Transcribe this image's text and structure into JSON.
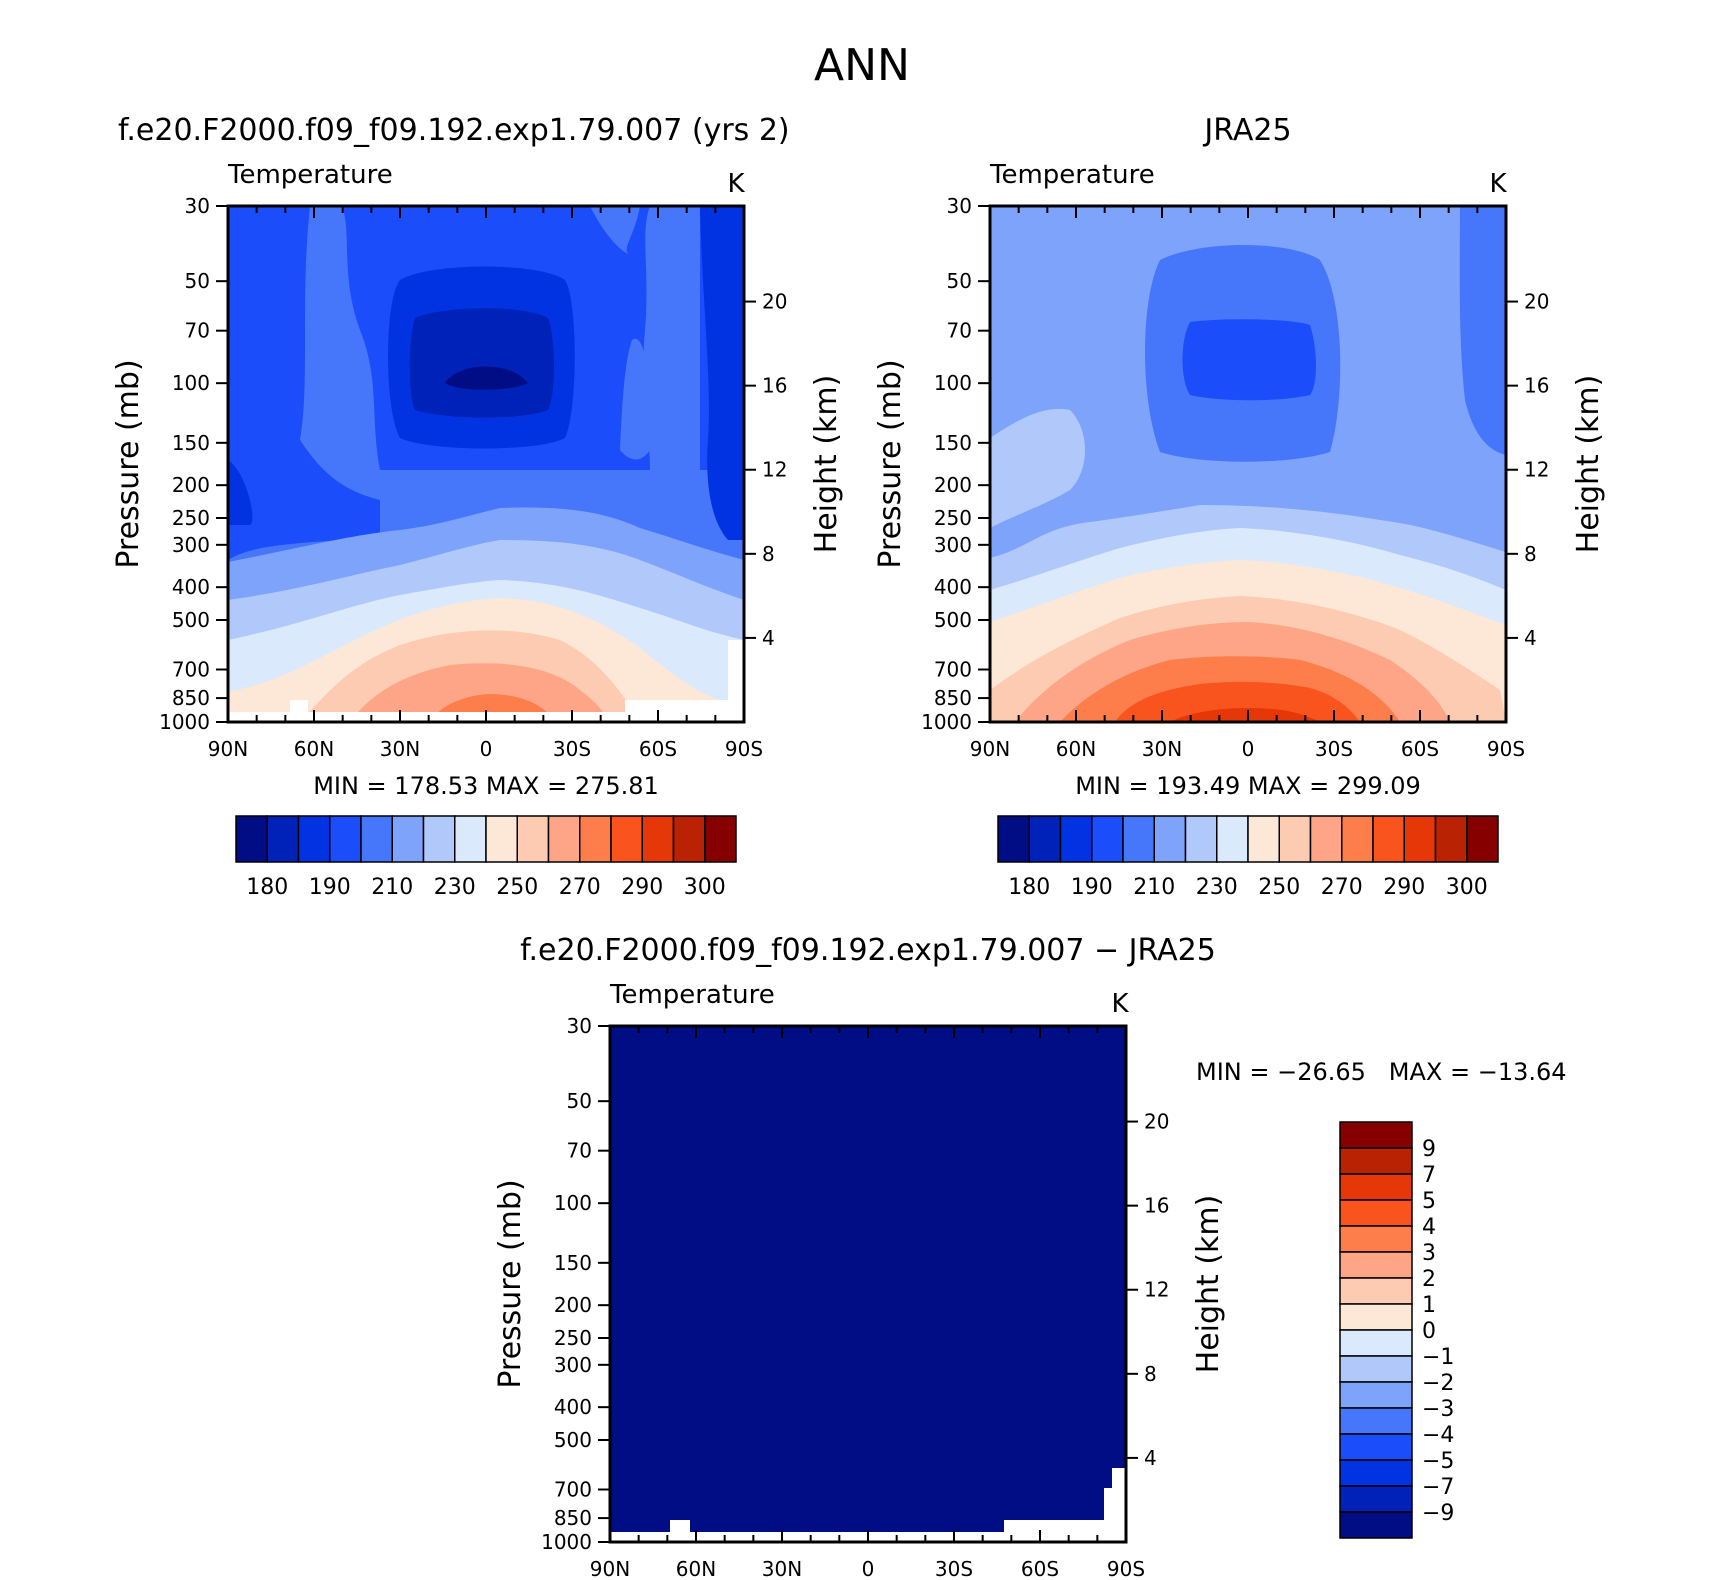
{
  "main_title": "ANN",
  "chart_data": [
    {
      "type": "heatmap",
      "title": "f.e20.F2000.f09_f09.192.exp1.79.007 (yrs 2)",
      "variable": "Temperature",
      "units": "K",
      "xlabel": "",
      "ylabel": "Pressure (mb)",
      "y2label": "Height (km)",
      "x_ticks": [
        "90N",
        "60N",
        "30N",
        "0",
        "30S",
        "60S",
        "90S"
      ],
      "y_ticks": [
        "30",
        "50",
        "70",
        "100",
        "150",
        "200",
        "250",
        "300",
        "400",
        "500",
        "700",
        "850",
        "1000"
      ],
      "y2_ticks": [
        "20",
        "16",
        "12",
        "8",
        "4"
      ],
      "stats": "MIN =  178.53   MAX =  275.81",
      "colorbar_labels": [
        "180",
        "190",
        "210",
        "230",
        "250",
        "270",
        "290",
        "300"
      ]
    },
    {
      "type": "heatmap",
      "title": "JRA25",
      "variable": "Temperature",
      "units": "K",
      "xlabel": "",
      "ylabel": "Pressure (mb)",
      "y2label": "Height (km)",
      "x_ticks": [
        "90N",
        "60N",
        "30N",
        "0",
        "30S",
        "60S",
        "90S"
      ],
      "y_ticks": [
        "30",
        "50",
        "70",
        "100",
        "150",
        "200",
        "250",
        "300",
        "400",
        "500",
        "700",
        "850",
        "1000"
      ],
      "y2_ticks": [
        "20",
        "16",
        "12",
        "8",
        "4"
      ],
      "stats": "MIN =  193.49   MAX =  299.09",
      "colorbar_labels": [
        "180",
        "190",
        "210",
        "230",
        "250",
        "270",
        "290",
        "300"
      ]
    },
    {
      "type": "heatmap",
      "title": "f.e20.F2000.f09_f09.192.exp1.79.007 − JRA25",
      "variable": "Temperature",
      "units": "K",
      "xlabel": "",
      "ylabel": "Pressure (mb)",
      "y2label": "Height (km)",
      "x_ticks": [
        "90N",
        "60N",
        "30N",
        "0",
        "30S",
        "60S",
        "90S"
      ],
      "y_ticks": [
        "30",
        "50",
        "70",
        "100",
        "150",
        "200",
        "250",
        "300",
        "400",
        "500",
        "700",
        "850",
        "1000"
      ],
      "y2_ticks": [
        "20",
        "16",
        "12",
        "8",
        "4"
      ],
      "stats": "MIN = −26.65   MAX = −13.64",
      "colorbar_labels": [
        "9",
        "7",
        "5",
        "4",
        "3",
        "2",
        "1",
        "0",
        "−1",
        "−2",
        "−3",
        "−4",
        "−5",
        "−7",
        "−9"
      ]
    }
  ],
  "colors": {
    "temp_scale": [
      "#000d85",
      "#0022b8",
      "#0233e3",
      "#1c4dfb",
      "#4677fb",
      "#7ea3fb",
      "#b1c8fb",
      "#dbe9fc",
      "#fde8d8",
      "#fdcab2",
      "#fda586",
      "#fd7d4b",
      "#f9541d",
      "#e53708",
      "#b92304",
      "#870000"
    ],
    "diff_scale": [
      "#870000",
      "#b92304",
      "#e53708",
      "#f9541d",
      "#fd7d4b",
      "#fda586",
      "#fdcab2",
      "#fde8d8",
      "#dbe9fc",
      "#b1c8fb",
      "#7ea3fb",
      "#4677fb",
      "#1c4dfb",
      "#0233e3",
      "#0022b8",
      "#000d85"
    ]
  }
}
